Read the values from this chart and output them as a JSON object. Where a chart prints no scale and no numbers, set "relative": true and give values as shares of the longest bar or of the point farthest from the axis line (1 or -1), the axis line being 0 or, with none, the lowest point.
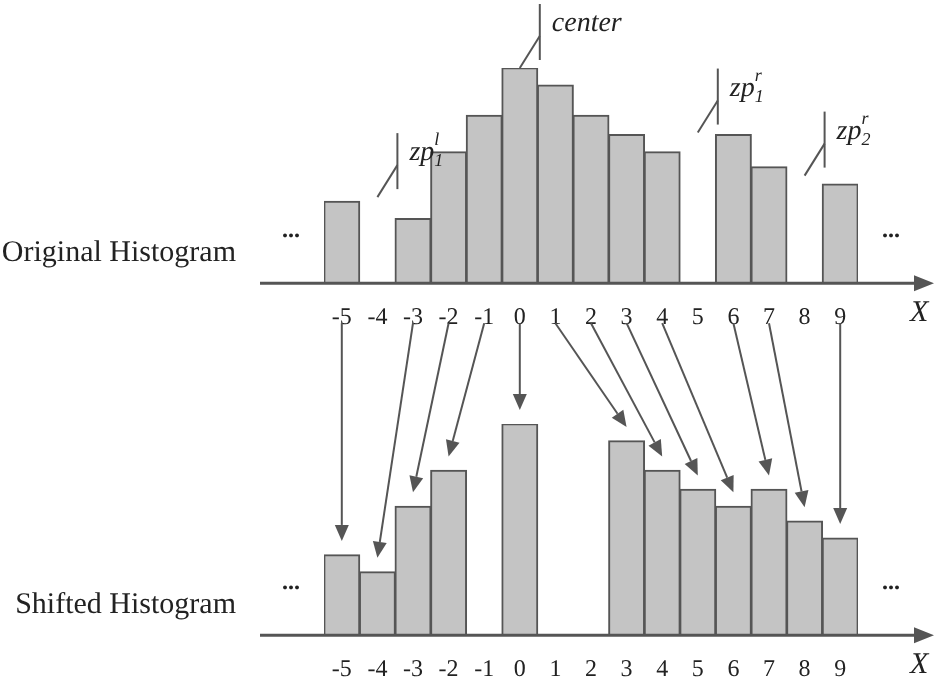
{
  "chart_data": [
    {
      "type": "bar",
      "title": "Original Histogram",
      "xlabel": "X",
      "relative": true,
      "color": "#c4c4c4",
      "categories": [
        "-5",
        "-4",
        "-3",
        "-2",
        "-1",
        "0",
        "1",
        "2",
        "3",
        "4",
        "5",
        "6",
        "7",
        "8",
        "9"
      ],
      "values": [
        0.38,
        0,
        0.3,
        0.61,
        0.78,
        1,
        0.92,
        0.78,
        0.69,
        0.61,
        0,
        0.69,
        0.54,
        0,
        0.46
      ],
      "annotations": [
        {
          "text": "center",
          "x": "0",
          "y": 1
        },
        "zp$_{1}$$^{l}$",
        "zp$_{1}$$^{r}$",
        "zp$_{2}$$^{r}$",
        "...",
        "..."
      ]
    },
    {
      "type": "bar",
      "title": "Shifted Histogram",
      "xlabel": "X",
      "relative": true,
      "color": "#c4c4c4",
      "categories": [
        "-5",
        "-4",
        "-3",
        "-2",
        "-1",
        "0",
        "1",
        "2",
        "3",
        "4",
        "5",
        "6",
        "7",
        "8",
        "9"
      ],
      "values": [
        0.38,
        0.3,
        0.61,
        0.78,
        0,
        1,
        0,
        0,
        0.92,
        0.78,
        0.69,
        0.61,
        0.69,
        0.54,
        0.46
      ],
      "annotations": [
        "...",
        "..."
      ]
    }
  ]
}
